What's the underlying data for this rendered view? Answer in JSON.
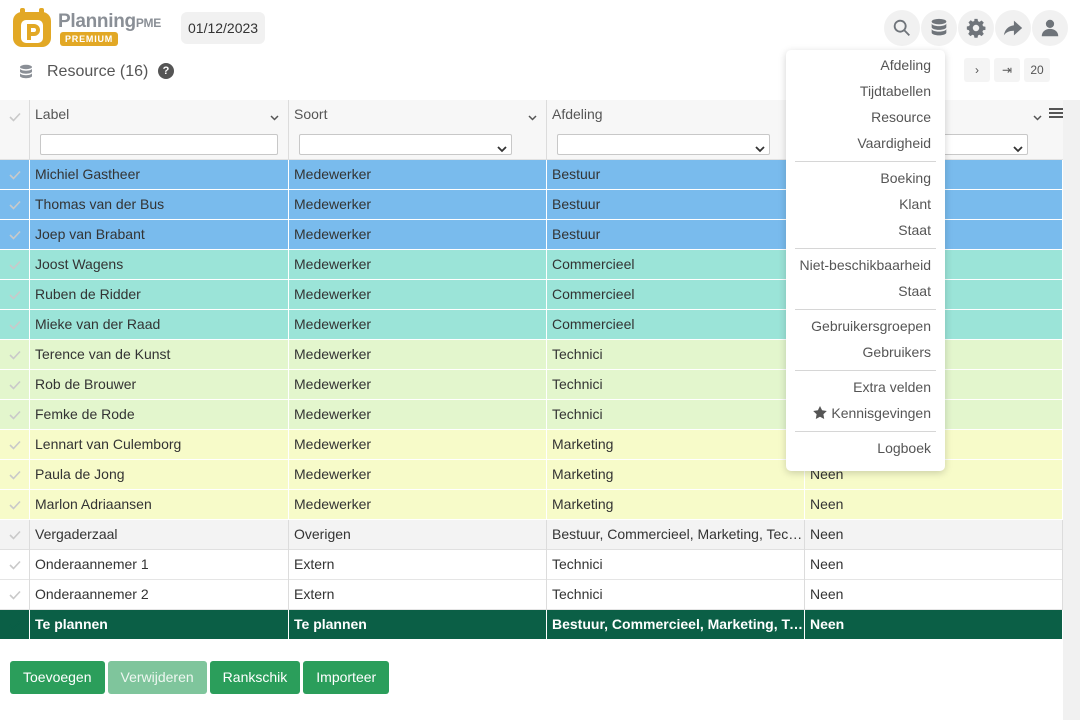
{
  "brand": {
    "name": "Planning",
    "name_suffix": "PME",
    "badge": "PREMIUM",
    "logo_letter": "P",
    "logo_color": "#e2a825"
  },
  "header": {
    "date": "01/12/2023",
    "icons": [
      "search-icon",
      "database-icon",
      "gear-icon",
      "share-icon",
      "user-icon"
    ]
  },
  "subheader": {
    "title": "Resource (16)",
    "help": "?"
  },
  "pager": {
    "page_size": "20"
  },
  "columns": [
    {
      "label": "Label",
      "filter": "text"
    },
    {
      "label": "Soort",
      "filter": "select"
    },
    {
      "label": "Afdeling",
      "filter": "select"
    },
    {
      "label": "",
      "filter": "select"
    }
  ],
  "rows": [
    {
      "label": "Michiel Gastheer",
      "soort": "Medewerker",
      "afdeling": "Bestuur",
      "col4": "",
      "group": "bestuur"
    },
    {
      "label": "Thomas van der Bus",
      "soort": "Medewerker",
      "afdeling": "Bestuur",
      "col4": "",
      "group": "bestuur"
    },
    {
      "label": "Joep van Brabant",
      "soort": "Medewerker",
      "afdeling": "Bestuur",
      "col4": "",
      "group": "bestuur"
    },
    {
      "label": "Joost Wagens",
      "soort": "Medewerker",
      "afdeling": "Commercieel",
      "col4": "",
      "group": "comm"
    },
    {
      "label": "Ruben de Ridder",
      "soort": "Medewerker",
      "afdeling": "Commercieel",
      "col4": "",
      "group": "comm"
    },
    {
      "label": "Mieke van der Raad",
      "soort": "Medewerker",
      "afdeling": "Commercieel",
      "col4": "",
      "group": "comm"
    },
    {
      "label": "Terence van de Kunst",
      "soort": "Medewerker",
      "afdeling": "Technici",
      "col4": "",
      "group": "tech"
    },
    {
      "label": "Rob de Brouwer",
      "soort": "Medewerker",
      "afdeling": "Technici",
      "col4": "",
      "group": "tech"
    },
    {
      "label": "Femke de Rode",
      "soort": "Medewerker",
      "afdeling": "Technici",
      "col4": "",
      "group": "tech"
    },
    {
      "label": "Lennart van Culemborg",
      "soort": "Medewerker",
      "afdeling": "Marketing",
      "col4": "",
      "group": "mark"
    },
    {
      "label": "Paula de Jong",
      "soort": "Medewerker",
      "afdeling": "Marketing",
      "col4": "Neen",
      "group": "mark"
    },
    {
      "label": "Marlon Adriaansen",
      "soort": "Medewerker",
      "afdeling": "Marketing",
      "col4": "Neen",
      "group": "mark"
    },
    {
      "label": "Vergaderzaal",
      "soort": "Overigen",
      "afdeling": "Bestuur, Commercieel, Marketing, Technici",
      "col4": "Neen",
      "group": "vergader"
    },
    {
      "label": "Onderaannemer 1",
      "soort": "Extern",
      "afdeling": "Technici",
      "col4": "Neen",
      "group": "plain"
    },
    {
      "label": "Onderaannemer 2",
      "soort": "Extern",
      "afdeling": "Technici",
      "col4": "Neen",
      "group": "plain"
    },
    {
      "label": "Te plannen",
      "soort": "Te plannen",
      "afdeling": "Bestuur, Commercieel, Marketing, Technici",
      "col4": "Neen",
      "group": "total"
    }
  ],
  "actions": {
    "add": "Toevoegen",
    "delete": "Verwijderen",
    "rank": "Rankschik",
    "import": "Importeer"
  },
  "dropdown_menu": {
    "groups": [
      [
        "Afdeling",
        "Tijdtabellen",
        "Resource",
        "Vaardigheid"
      ],
      [
        "Boeking",
        "Klant",
        "Staat"
      ],
      [
        "Niet-beschikbaarheid",
        "Staat"
      ],
      [
        "Gebruikersgroepen",
        "Gebruikers"
      ],
      [
        "Extra velden",
        "Kennisgevingen"
      ],
      [
        "Logboek"
      ]
    ],
    "starred_item": "Kennisgevingen"
  },
  "colors": {
    "bestuur": "#79bbed",
    "commercieel": "#9be4d8",
    "technici": "#e3f6cd",
    "marketing": "#f7fbc9",
    "total": "#0b5f46",
    "button": "#2b9e5b"
  }
}
